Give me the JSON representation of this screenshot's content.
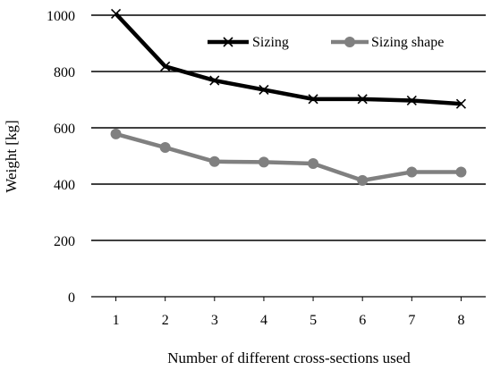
{
  "chart_data": {
    "type": "line",
    "title": "",
    "xlabel": "Number of different cross-sections used",
    "ylabel": "Weight [kg]",
    "categories": [
      "1",
      "2",
      "3",
      "4",
      "5",
      "6",
      "7",
      "8"
    ],
    "ylim": [
      0,
      1000
    ],
    "yticks": [
      "0",
      "200",
      "400",
      "600",
      "800",
      "1000"
    ],
    "grid": "horizontal",
    "legend_position": "top-right",
    "series": [
      {
        "name": "Sizing",
        "color": "#000000",
        "marker": "x-marker",
        "values": [
          1005,
          818,
          768,
          735,
          702,
          702,
          697,
          685
        ]
      },
      {
        "name": "Sizing shape",
        "color": "#808080",
        "marker": "circle-marker",
        "values": [
          578,
          530,
          480,
          478,
          473,
          413,
          443,
          443
        ]
      }
    ]
  }
}
